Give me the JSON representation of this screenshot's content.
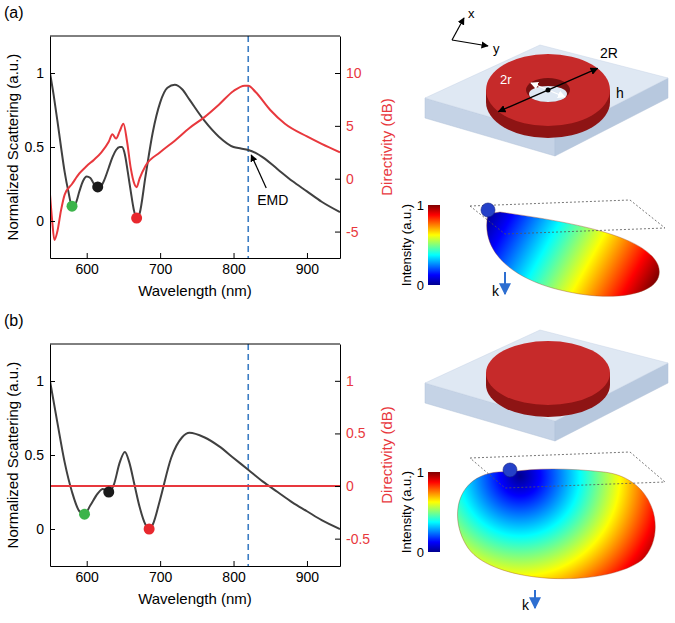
{
  "chart_data": [
    {
      "type": "line",
      "panel_label": "(a)",
      "x_label": "Wavelength (nm)",
      "y_label": "Normalized Scattering (a.u.)",
      "y2_label": "Directivity (dB)",
      "xlim": [
        550,
        945
      ],
      "xticks": [
        600,
        700,
        800,
        900
      ],
      "ylim": [
        -0.25,
        1.25
      ],
      "yticks": [
        0,
        0.5,
        1
      ],
      "y2lim": [
        -7.5,
        13.5
      ],
      "y2ticks": [
        -5,
        0,
        5,
        10
      ],
      "series": [
        {
          "color": "#404040",
          "x": [
            550,
            555,
            560,
            565,
            570,
            575,
            580,
            585,
            590,
            595,
            600,
            605,
            610,
            615,
            620,
            625,
            630,
            635,
            640,
            645,
            648,
            652,
            656,
            660,
            664,
            668,
            672,
            680,
            690,
            700,
            710,
            720,
            730,
            740,
            760,
            780,
            800,
            810,
            820,
            830,
            840,
            860,
            880,
            900,
            920,
            945
          ],
          "values": [
            1.0,
            0.85,
            0.68,
            0.5,
            0.33,
            0.2,
            0.1,
            0.12,
            0.2,
            0.27,
            0.3,
            0.29,
            0.25,
            0.23,
            0.24,
            0.29,
            0.36,
            0.43,
            0.48,
            0.5,
            0.5,
            0.45,
            0.33,
            0.2,
            0.08,
            0.02,
            0.05,
            0.3,
            0.6,
            0.8,
            0.9,
            0.92,
            0.89,
            0.82,
            0.68,
            0.57,
            0.5,
            0.49,
            0.48,
            0.46,
            0.43,
            0.35,
            0.27,
            0.2,
            0.13,
            0.06
          ]
        },
        {
          "color": "#e8383d",
          "axis": "y2",
          "x": [
            550,
            553,
            556,
            560,
            565,
            570,
            580,
            590,
            600,
            610,
            620,
            630,
            635,
            640,
            645,
            650,
            655,
            660,
            665,
            668,
            672,
            680,
            700,
            720,
            740,
            760,
            780,
            800,
            815,
            820,
            830,
            850,
            870,
            900,
            920,
            945
          ],
          "values": [
            -1.5,
            -4,
            -5.8,
            -5,
            -3,
            -1.5,
            -0.5,
            0.5,
            1.2,
            1.8,
            2.5,
            3.5,
            4.2,
            3.8,
            4.5,
            5.2,
            3.5,
            1,
            -0.5,
            -0.8,
            0,
            1.2,
            2.5,
            3.6,
            4.8,
            5.8,
            7,
            8.3,
            8.8,
            8.8,
            8.2,
            6.5,
            5.2,
            4,
            3.3,
            2.5
          ]
        },
        {
          "type": "scatter",
          "marker": "circle",
          "colors": [
            "#3cb44b",
            "#1a1a1a",
            "#e8282e"
          ],
          "x": [
            580,
            615,
            668
          ],
          "values": [
            0.1,
            0.23,
            0.02
          ]
        }
      ],
      "vlines": [
        {
          "x": 820,
          "color": "#3b7dc4",
          "line_style": "dashed"
        }
      ],
      "annotations": [
        {
          "text": "EMD",
          "x": 820,
          "y": 0.48
        }
      ]
    },
    {
      "type": "line",
      "panel_label": "(b)",
      "x_label": "Wavelength (nm)",
      "y_label": "Normalized Scattering (a.u.)",
      "y2_label": "Directivity (dB)",
      "xlim": [
        550,
        945
      ],
      "xticks": [
        600,
        700,
        800,
        900
      ],
      "ylim": [
        -0.25,
        1.25
      ],
      "yticks": [
        0,
        0.5,
        1
      ],
      "y2lim": [
        -0.76,
        1.35
      ],
      "y2ticks": [
        -0.5,
        0,
        0.5,
        1
      ],
      "series": [
        {
          "color": "#404040",
          "x": [
            550,
            560,
            570,
            580,
            590,
            597,
            605,
            615,
            622,
            630,
            637,
            645,
            652,
            658,
            665,
            672,
            680,
            685,
            690,
            700,
            715,
            730,
            740,
            760,
            780,
            800,
            820,
            840,
            860,
            880,
            900,
            920,
            945
          ],
          "values": [
            1.0,
            0.72,
            0.45,
            0.25,
            0.12,
            0.1,
            0.16,
            0.24,
            0.27,
            0.25,
            0.3,
            0.45,
            0.52,
            0.45,
            0.3,
            0.15,
            0.03,
            0.0,
            0.03,
            0.2,
            0.48,
            0.62,
            0.65,
            0.62,
            0.56,
            0.48,
            0.4,
            0.32,
            0.25,
            0.18,
            0.12,
            0.06,
            0.0
          ]
        },
        {
          "color": "#e8383d",
          "axis": "y2",
          "x": [
            550,
            945
          ],
          "values": [
            0,
            0
          ]
        },
        {
          "type": "scatter",
          "marker": "circle",
          "colors": [
            "#3cb44b",
            "#1a1a1a",
            "#e8282e"
          ],
          "x": [
            597,
            630,
            685
          ],
          "values": [
            0.1,
            0.25,
            0.0
          ]
        }
      ],
      "vlines": [
        {
          "x": 820,
          "color": "#3b7dc4",
          "line_style": "dashed"
        }
      ]
    }
  ],
  "illustrations": [
    {
      "shape": "ring",
      "labels": {
        "x_axis": "x",
        "y_axis": "y",
        "inner_diameter": "2r",
        "outer_diameter": "2R",
        "height": "h",
        "wave_vector": "k"
      },
      "colorbar": {
        "label": "Intensity (a.u.)",
        "range": [
          0,
          1
        ],
        "ticks": [
          0,
          1
        ]
      }
    },
    {
      "shape": "disk",
      "labels": {
        "wave_vector": "k"
      },
      "colorbar": {
        "label": "Intensity (a.u.)",
        "range": [
          0,
          1
        ],
        "ticks": [
          0,
          1
        ]
      }
    }
  ]
}
